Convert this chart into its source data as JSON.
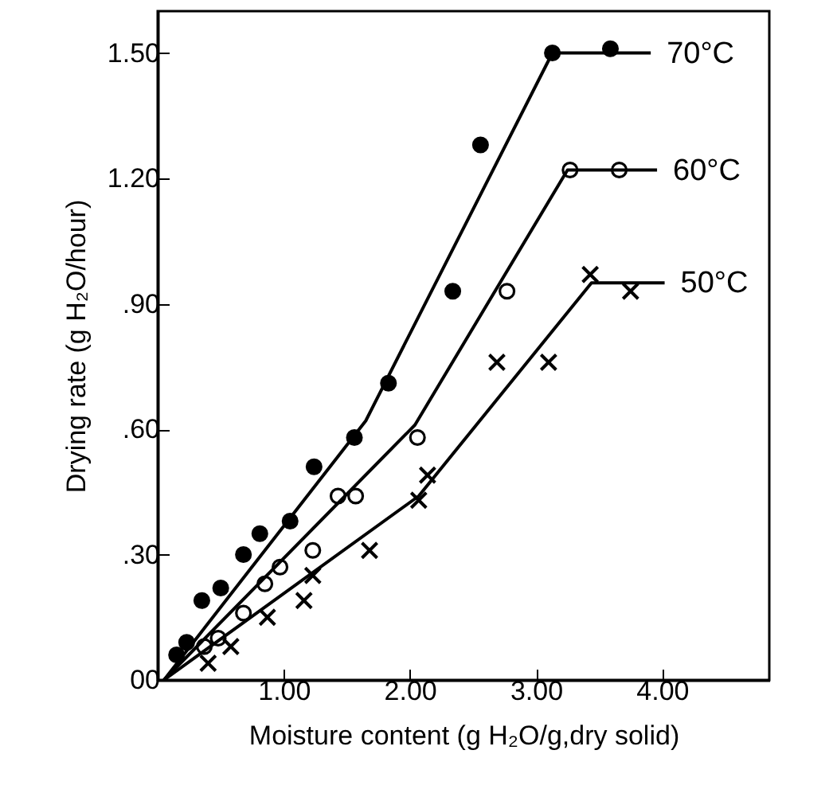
{
  "chart_data": {
    "type": "scatter",
    "xlabel": "Moisture content (g H₂O/g,dry solid)",
    "ylabel": "Drying rate (g H₂O/hour)",
    "xlim": [
      0,
      4.85
    ],
    "ylim": [
      0,
      1.6
    ],
    "xticks": [
      {
        "value": 1,
        "label": "1.00"
      },
      {
        "value": 2,
        "label": "2.00"
      },
      {
        "value": 3,
        "label": "3.00"
      },
      {
        "value": 4,
        "label": "4.00"
      }
    ],
    "yticks": [
      {
        "value": 0,
        "label": "00"
      },
      {
        "value": 0.3,
        "label": ".30"
      },
      {
        "value": 0.6,
        "label": ".60"
      },
      {
        "value": 0.9,
        "label": ".90"
      },
      {
        "value": 1.2,
        "label": "1.20"
      },
      {
        "value": 1.5,
        "label": "1.50"
      }
    ],
    "grid": false,
    "series": [
      {
        "marker": "circle",
        "color": "#000000",
        "x": [
          0.15,
          0.23,
          0.35,
          0.5,
          0.68,
          0.81,
          1.05,
          1.24,
          1.56,
          1.83,
          2.34,
          2.56,
          3.13,
          3.59
        ],
        "values": [
          0.06,
          0.09,
          0.19,
          0.22,
          0.3,
          0.35,
          0.38,
          0.51,
          0.58,
          0.71,
          0.93,
          1.28,
          1.5,
          1.51
        ]
      },
      {
        "marker": "circle",
        "color": "#ffffff",
        "x": [
          0.37,
          0.48,
          0.68,
          0.85,
          0.97,
          1.23,
          1.43,
          1.57,
          2.06,
          2.77,
          3.27,
          3.66
        ],
        "values": [
          0.08,
          0.1,
          0.16,
          0.23,
          0.27,
          0.31,
          0.44,
          0.44,
          0.58,
          0.93,
          1.22,
          1.22
        ]
      },
      {
        "marker": "cross",
        "color": "#000000",
        "x": [
          0.4,
          0.58,
          0.87,
          1.16,
          1.23,
          1.68,
          2.07,
          2.14,
          2.69,
          3.1,
          3.43,
          3.75
        ],
        "values": [
          0.04,
          0.08,
          0.15,
          0.19,
          0.25,
          0.31,
          0.43,
          0.49,
          0.76,
          0.76,
          0.97,
          0.93
        ]
      },
      {
        "type": "line",
        "name": "70°C",
        "color": "#000000",
        "x": [
          0.05,
          1.65,
          3.13,
          3.91
        ],
        "values": [
          0,
          0.62,
          1.5,
          1.5
        ]
      },
      {
        "type": "line",
        "name": "60°C",
        "color": "#000000",
        "x": [
          0.05,
          2.04,
          3.25,
          3.96
        ],
        "values": [
          0,
          0.61,
          1.22,
          1.22
        ]
      },
      {
        "type": "line",
        "name": "50°C",
        "color": "#000000",
        "x": [
          0.05,
          2.07,
          3.44,
          4.02
        ],
        "values": [
          0,
          0.44,
          0.95,
          0.95
        ]
      }
    ]
  }
}
